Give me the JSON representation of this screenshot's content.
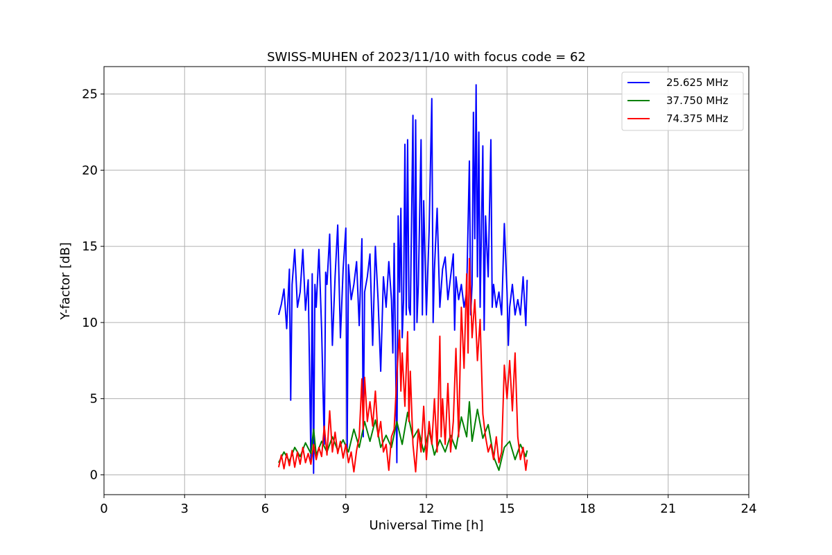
{
  "chart_data": {
    "type": "line",
    "title": "SWISS-MUHEN of 2023/11/10 with focus code = 62",
    "xlabel": "Universal Time [h]",
    "ylabel": "Y-factor [dB]",
    "xlim": [
      0,
      24
    ],
    "ylim": [
      -1.3,
      26.8
    ],
    "xticks": [
      0,
      3,
      6,
      9,
      12,
      15,
      18,
      21,
      24
    ],
    "yticks": [
      0,
      5,
      10,
      15,
      20,
      25
    ],
    "grid": true,
    "legend_position": "top-right",
    "series": [
      {
        "name": "25.625 MHz",
        "color": "#0000ff",
        "points": [
          [
            6.5,
            10.5
          ],
          [
            6.6,
            11.2
          ],
          [
            6.7,
            12.2
          ],
          [
            6.8,
            9.6
          ],
          [
            6.9,
            13.5
          ],
          [
            6.95,
            4.9
          ],
          [
            7.0,
            12.5
          ],
          [
            7.1,
            14.8
          ],
          [
            7.2,
            11.0
          ],
          [
            7.3,
            12.0
          ],
          [
            7.4,
            14.8
          ],
          [
            7.5,
            10.8
          ],
          [
            7.6,
            12.8
          ],
          [
            7.7,
            1.0
          ],
          [
            7.75,
            13.2
          ],
          [
            7.8,
            0.1
          ],
          [
            7.85,
            12.5
          ],
          [
            7.9,
            11.0
          ],
          [
            8.0,
            14.8
          ],
          [
            8.1,
            9.5
          ],
          [
            8.2,
            2.0
          ],
          [
            8.25,
            13.3
          ],
          [
            8.3,
            12.5
          ],
          [
            8.4,
            15.8
          ],
          [
            8.5,
            8.5
          ],
          [
            8.6,
            13.0
          ],
          [
            8.7,
            16.4
          ],
          [
            8.8,
            9.0
          ],
          [
            8.9,
            13.5
          ],
          [
            9.0,
            16.2
          ],
          [
            9.05,
            1.5
          ],
          [
            9.1,
            13.8
          ],
          [
            9.2,
            11.5
          ],
          [
            9.3,
            12.5
          ],
          [
            9.4,
            14.0
          ],
          [
            9.5,
            9.8
          ],
          [
            9.6,
            15.5
          ],
          [
            9.65,
            2.5
          ],
          [
            9.7,
            12.0
          ],
          [
            9.8,
            13.0
          ],
          [
            9.9,
            14.5
          ],
          [
            10.0,
            8.5
          ],
          [
            10.1,
            15.0
          ],
          [
            10.2,
            11.5
          ],
          [
            10.3,
            6.8
          ],
          [
            10.4,
            13.0
          ],
          [
            10.5,
            11.0
          ],
          [
            10.6,
            14.0
          ],
          [
            10.7,
            11.5
          ],
          [
            10.75,
            8.0
          ],
          [
            10.8,
            15.2
          ],
          [
            10.9,
            0.8
          ],
          [
            10.95,
            17.0
          ],
          [
            11.0,
            12.0
          ],
          [
            11.05,
            17.5
          ],
          [
            11.1,
            9.0
          ],
          [
            11.15,
            11.5
          ],
          [
            11.2,
            21.7
          ],
          [
            11.25,
            10.5
          ],
          [
            11.3,
            22.0
          ],
          [
            11.35,
            11.0
          ],
          [
            11.4,
            10.5
          ],
          [
            11.5,
            23.6
          ],
          [
            11.55,
            9.5
          ],
          [
            11.6,
            23.3
          ],
          [
            11.65,
            10.0
          ],
          [
            11.7,
            12.5
          ],
          [
            11.8,
            22.0
          ],
          [
            11.85,
            10.5
          ],
          [
            11.9,
            18.0
          ],
          [
            12.0,
            10.5
          ],
          [
            12.1,
            16.0
          ],
          [
            12.2,
            24.7
          ],
          [
            12.25,
            10.0
          ],
          [
            12.3,
            13.5
          ],
          [
            12.4,
            17.5
          ],
          [
            12.5,
            11.0
          ],
          [
            12.6,
            13.5
          ],
          [
            12.7,
            14.3
          ],
          [
            12.8,
            11.5
          ],
          [
            12.9,
            13.0
          ],
          [
            13.0,
            14.5
          ],
          [
            13.05,
            9.5
          ],
          [
            13.1,
            13.0
          ],
          [
            13.2,
            11.5
          ],
          [
            13.3,
            12.5
          ],
          [
            13.4,
            11.0
          ],
          [
            13.5,
            12.0
          ],
          [
            13.6,
            20.6
          ],
          [
            13.65,
            10.5
          ],
          [
            13.7,
            12.5
          ],
          [
            13.75,
            23.8
          ],
          [
            13.8,
            15.5
          ],
          [
            13.85,
            25.6
          ],
          [
            13.9,
            13.0
          ],
          [
            13.95,
            22.5
          ],
          [
            14.0,
            11.0
          ],
          [
            14.1,
            21.6
          ],
          [
            14.15,
            9.5
          ],
          [
            14.2,
            17.0
          ],
          [
            14.3,
            13.0
          ],
          [
            14.4,
            22.0
          ],
          [
            14.45,
            11.0
          ],
          [
            14.5,
            12.5
          ],
          [
            14.6,
            11.0
          ],
          [
            14.7,
            12.0
          ],
          [
            14.8,
            10.5
          ],
          [
            14.9,
            16.5
          ],
          [
            15.0,
            12.0
          ],
          [
            15.05,
            8.5
          ],
          [
            15.1,
            11.0
          ],
          [
            15.2,
            12.5
          ],
          [
            15.3,
            10.5
          ],
          [
            15.4,
            11.5
          ],
          [
            15.5,
            10.5
          ],
          [
            15.6,
            13.0
          ],
          [
            15.7,
            9.8
          ],
          [
            15.75,
            12.8
          ]
        ]
      },
      {
        "name": "37.750 MHz",
        "color": "#008000",
        "points": [
          [
            6.5,
            0.8
          ],
          [
            6.7,
            1.5
          ],
          [
            6.9,
            0.9
          ],
          [
            7.1,
            1.8
          ],
          [
            7.3,
            1.2
          ],
          [
            7.5,
            2.1
          ],
          [
            7.7,
            1.4
          ],
          [
            7.8,
            3.0
          ],
          [
            7.9,
            1.3
          ],
          [
            8.1,
            2.2
          ],
          [
            8.3,
            1.5
          ],
          [
            8.5,
            2.5
          ],
          [
            8.7,
            1.6
          ],
          [
            8.9,
            2.3
          ],
          [
            9.1,
            1.5
          ],
          [
            9.3,
            3.0
          ],
          [
            9.5,
            1.8
          ],
          [
            9.7,
            3.5
          ],
          [
            9.9,
            2.2
          ],
          [
            10.1,
            3.6
          ],
          [
            10.3,
            1.8
          ],
          [
            10.5,
            2.6
          ],
          [
            10.7,
            1.8
          ],
          [
            10.9,
            3.5
          ],
          [
            11.1,
            2.0
          ],
          [
            11.3,
            4.1
          ],
          [
            11.5,
            2.4
          ],
          [
            11.7,
            3.0
          ],
          [
            11.9,
            1.5
          ],
          [
            12.1,
            2.9
          ],
          [
            12.3,
            1.3
          ],
          [
            12.5,
            2.3
          ],
          [
            12.7,
            1.5
          ],
          [
            12.9,
            2.6
          ],
          [
            13.1,
            1.7
          ],
          [
            13.3,
            3.8
          ],
          [
            13.5,
            2.5
          ],
          [
            13.6,
            4.8
          ],
          [
            13.7,
            2.2
          ],
          [
            13.9,
            4.3
          ],
          [
            14.1,
            2.4
          ],
          [
            14.3,
            3.3
          ],
          [
            14.5,
            1.2
          ],
          [
            14.7,
            0.3
          ],
          [
            14.9,
            1.8
          ],
          [
            15.1,
            2.2
          ],
          [
            15.3,
            1.0
          ],
          [
            15.5,
            2.0
          ],
          [
            15.7,
            1.2
          ],
          [
            15.75,
            1.6
          ]
        ]
      },
      {
        "name": "74.375 MHz",
        "color": "#ff0000",
        "points": [
          [
            6.5,
            0.5
          ],
          [
            6.6,
            1.3
          ],
          [
            6.7,
            0.4
          ],
          [
            6.8,
            1.4
          ],
          [
            6.9,
            0.6
          ],
          [
            7.0,
            1.6
          ],
          [
            7.1,
            0.5
          ],
          [
            7.2,
            1.5
          ],
          [
            7.3,
            0.7
          ],
          [
            7.4,
            1.8
          ],
          [
            7.5,
            0.8
          ],
          [
            7.6,
            1.4
          ],
          [
            7.7,
            0.7
          ],
          [
            7.8,
            2.0
          ],
          [
            7.9,
            1.0
          ],
          [
            8.0,
            1.8
          ],
          [
            8.1,
            1.2
          ],
          [
            8.2,
            3.2
          ],
          [
            8.3,
            1.3
          ],
          [
            8.4,
            4.2
          ],
          [
            8.5,
            1.5
          ],
          [
            8.6,
            2.8
          ],
          [
            8.7,
            1.4
          ],
          [
            8.8,
            2.2
          ],
          [
            8.9,
            1.1
          ],
          [
            9.0,
            2.0
          ],
          [
            9.1,
            0.8
          ],
          [
            9.2,
            1.5
          ],
          [
            9.3,
            0.2
          ],
          [
            9.4,
            1.6
          ],
          [
            9.5,
            2.5
          ],
          [
            9.6,
            6.3
          ],
          [
            9.65,
            3.0
          ],
          [
            9.7,
            6.4
          ],
          [
            9.8,
            3.5
          ],
          [
            9.9,
            4.8
          ],
          [
            10.0,
            3.2
          ],
          [
            10.1,
            5.5
          ],
          [
            10.2,
            2.5
          ],
          [
            10.3,
            3.5
          ],
          [
            10.4,
            1.5
          ],
          [
            10.5,
            2.0
          ],
          [
            10.6,
            0.3
          ],
          [
            10.7,
            2.5
          ],
          [
            10.8,
            3.0
          ],
          [
            10.9,
            6.5
          ],
          [
            11.0,
            9.5
          ],
          [
            11.05,
            5.5
          ],
          [
            11.1,
            8.0
          ],
          [
            11.2,
            4.5
          ],
          [
            11.3,
            9.4
          ],
          [
            11.35,
            3.5
          ],
          [
            11.4,
            6.8
          ],
          [
            11.5,
            2.0
          ],
          [
            11.6,
            0.2
          ],
          [
            11.7,
            3.0
          ],
          [
            11.8,
            1.5
          ],
          [
            11.9,
            4.5
          ],
          [
            12.0,
            1.0
          ],
          [
            12.1,
            3.5
          ],
          [
            12.2,
            2.0
          ],
          [
            12.3,
            5.0
          ],
          [
            12.4,
            1.5
          ],
          [
            12.5,
            9.1
          ],
          [
            12.55,
            2.5
          ],
          [
            12.6,
            5.0
          ],
          [
            12.7,
            2.0
          ],
          [
            12.8,
            6.0
          ],
          [
            12.9,
            1.5
          ],
          [
            13.0,
            3.5
          ],
          [
            13.1,
            8.3
          ],
          [
            13.2,
            2.5
          ],
          [
            13.3,
            11.0
          ],
          [
            13.4,
            7.0
          ],
          [
            13.5,
            13.2
          ],
          [
            13.55,
            8.0
          ],
          [
            13.6,
            14.2
          ],
          [
            13.7,
            9.0
          ],
          [
            13.8,
            11.5
          ],
          [
            13.9,
            7.5
          ],
          [
            14.0,
            10.2
          ],
          [
            14.1,
            4.0
          ],
          [
            14.2,
            2.5
          ],
          [
            14.3,
            1.5
          ],
          [
            14.4,
            2.0
          ],
          [
            14.5,
            1.0
          ],
          [
            14.6,
            2.5
          ],
          [
            14.7,
            0.8
          ],
          [
            14.8,
            1.5
          ],
          [
            14.9,
            7.2
          ],
          [
            15.0,
            5.0
          ],
          [
            15.1,
            7.5
          ],
          [
            15.2,
            4.2
          ],
          [
            15.3,
            8.0
          ],
          [
            15.4,
            2.5
          ],
          [
            15.5,
            1.0
          ],
          [
            15.6,
            1.8
          ],
          [
            15.7,
            0.3
          ],
          [
            15.75,
            1.0
          ]
        ]
      }
    ]
  }
}
